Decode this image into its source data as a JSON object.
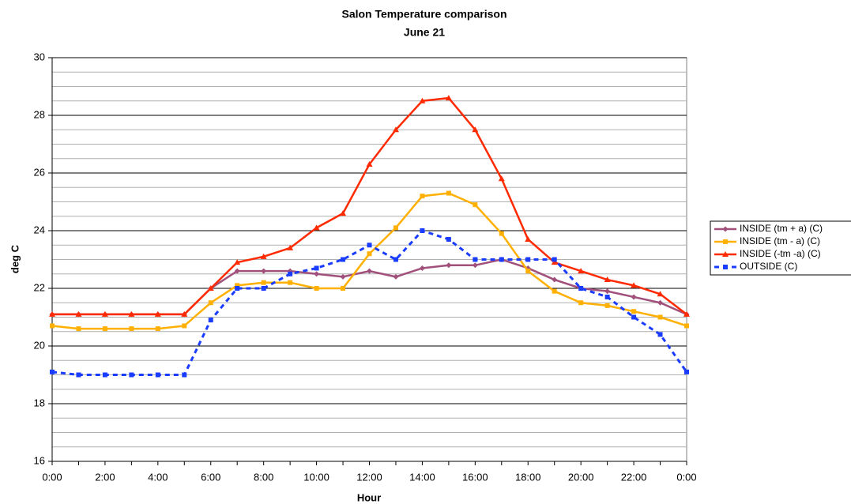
{
  "chart_data": {
    "type": "line",
    "title": "Salon Temperature comparison",
    "subtitle": "June 21",
    "y_label": "deg C",
    "x_label": "Hour",
    "categories": [
      "0:00",
      null,
      "2:00",
      null,
      "4:00",
      null,
      "6:00",
      null,
      "8:00",
      null,
      "10:00",
      null,
      "12:00",
      null,
      "14:00",
      null,
      "16:00",
      null,
      "18:00",
      null,
      "20:00",
      null,
      "22:00",
      null,
      "0:00"
    ],
    "series": [
      {
        "name": "INSIDE (tm + a) (C)",
        "color": "#a0507a",
        "marker": "diamond",
        "dash": false,
        "values": [
          21.1,
          21.1,
          21.1,
          21.1,
          21.1,
          21.1,
          22.0,
          22.6,
          22.6,
          22.6,
          22.5,
          22.4,
          22.6,
          22.4,
          22.7,
          22.8,
          22.8,
          23.0,
          22.7,
          22.3,
          22.0,
          21.9,
          21.7,
          21.5,
          21.1
        ]
      },
      {
        "name": "INSIDE (tm - a) (C)",
        "color": "#ffb000",
        "marker": "square",
        "dash": false,
        "values": [
          20.7,
          20.6,
          20.6,
          20.6,
          20.6,
          20.7,
          21.5,
          22.1,
          22.2,
          22.2,
          22.0,
          22.0,
          23.2,
          24.1,
          25.2,
          25.3,
          24.9,
          23.9,
          22.6,
          21.9,
          21.5,
          21.4,
          21.2,
          21.0,
          20.7
        ]
      },
      {
        "name": "INSIDE (-tm -a) (C)",
        "color": "#ff2a00",
        "marker": "triangle",
        "dash": false,
        "values": [
          21.1,
          21.1,
          21.1,
          21.1,
          21.1,
          21.1,
          22.0,
          22.9,
          23.1,
          23.4,
          24.1,
          24.6,
          26.3,
          27.5,
          28.5,
          28.6,
          27.5,
          25.8,
          23.7,
          22.9,
          22.6,
          22.3,
          22.1,
          21.8,
          21.1
        ]
      },
      {
        "name": "OUTSIDE (C)",
        "color": "#1a3cff",
        "marker": "square",
        "dash": true,
        "values": [
          19.1,
          19.0,
          19.0,
          19.0,
          19.0,
          19.0,
          20.9,
          22.0,
          22.0,
          22.5,
          22.7,
          23.0,
          23.5,
          23.0,
          24.0,
          23.7,
          23.0,
          23.0,
          23.0,
          23.0,
          22.0,
          21.7,
          21.0,
          20.4,
          19.1
        ]
      }
    ],
    "ylim": [
      16,
      30
    ],
    "yticks": [
      16,
      18,
      20,
      22,
      24,
      26,
      28,
      30
    ],
    "minor_grid": 0.5,
    "grid": true,
    "legend": "right"
  }
}
